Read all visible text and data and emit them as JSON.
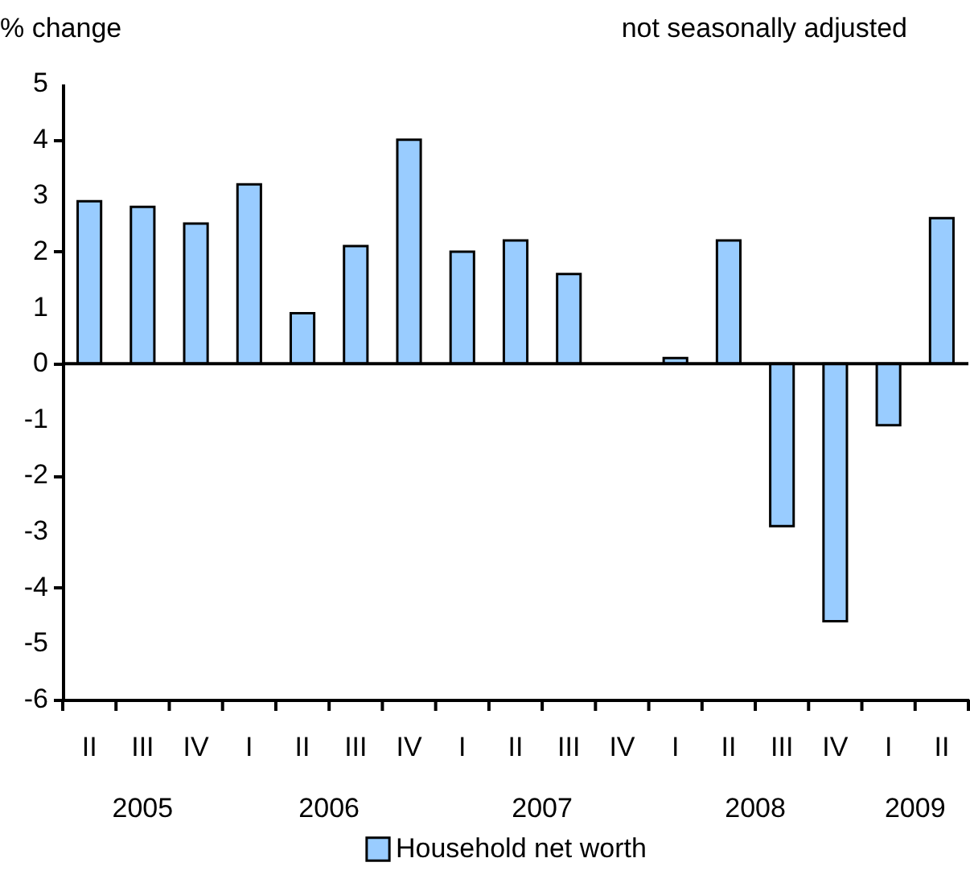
{
  "chart_data": {
    "type": "bar",
    "ylabel": "% change",
    "annotations": [
      "not seasonally adjusted",
      "2005",
      "2006",
      "2007",
      "2008",
      "2009"
    ],
    "categories": [
      "II",
      "III",
      "IV",
      "I",
      "II",
      "III",
      "IV",
      "I",
      "II",
      "III",
      "IV",
      "I",
      "II",
      "III",
      "IV",
      "I",
      "II"
    ],
    "series": [
      {
        "name": "Household net worth",
        "color": "#99ccff",
        "values": [
          2.9,
          2.8,
          2.5,
          3.2,
          0.9,
          2.1,
          4.0,
          2.0,
          2.2,
          1.6,
          null,
          0.1,
          2.2,
          -2.9,
          -4.6,
          -1.1,
          2.6
        ]
      }
    ],
    "ylim": [
      -6,
      5
    ],
    "yticks": [
      -6,
      -5,
      -4,
      -3,
      -2,
      -1,
      0,
      1,
      2,
      3,
      4,
      5
    ],
    "ref_lines": [
      {
        "axis": "y",
        "value": 0,
        "color": "#000000"
      }
    ],
    "grid": false,
    "legend": "bottom"
  }
}
